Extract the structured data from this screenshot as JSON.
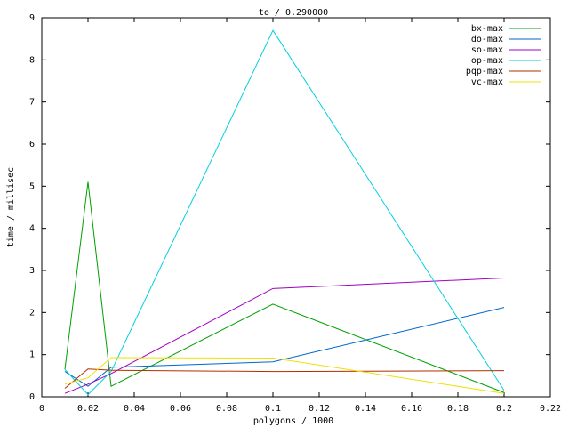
{
  "chart_data": {
    "type": "line",
    "title": "to / 0.290000",
    "x_label": "polygons / 1000",
    "y_label": "time / millisec",
    "x": [
      0.01,
      0.02,
      0.03,
      0.1,
      0.2
    ],
    "series": [
      {
        "name": "bx-max",
        "color": "#00a000",
        "values": [
          0.65,
          5.1,
          0.25,
          2.2,
          0.1
        ]
      },
      {
        "name": "do-max",
        "color": "#0066cc",
        "values": [
          0.6,
          0.25,
          0.7,
          0.83,
          2.12
        ]
      },
      {
        "name": "so-max",
        "color": "#a000c0",
        "values": [
          0.08,
          0.3,
          0.55,
          2.57,
          2.82
        ]
      },
      {
        "name": "op-max",
        "color": "#00d0e0",
        "values": [
          0.65,
          0.05,
          0.6,
          8.7,
          0.15
        ]
      },
      {
        "name": "pqp-max",
        "color": "#b03000",
        "values": [
          0.2,
          0.66,
          0.63,
          0.6,
          0.62
        ]
      },
      {
        "name": "vc-max",
        "color": "#f0e000",
        "values": [
          0.3,
          0.45,
          0.93,
          0.92,
          0.08
        ]
      }
    ],
    "xlim": [
      0,
      0.22
    ],
    "xticks": [
      0,
      0.02,
      0.04,
      0.06,
      0.08,
      0.1,
      0.12,
      0.14,
      0.16,
      0.18,
      0.2,
      0.22
    ],
    "ylim": [
      0,
      9
    ],
    "yticks": [
      0,
      1,
      2,
      3,
      4,
      5,
      6,
      7,
      8,
      9
    ],
    "legend": "top-right"
  }
}
